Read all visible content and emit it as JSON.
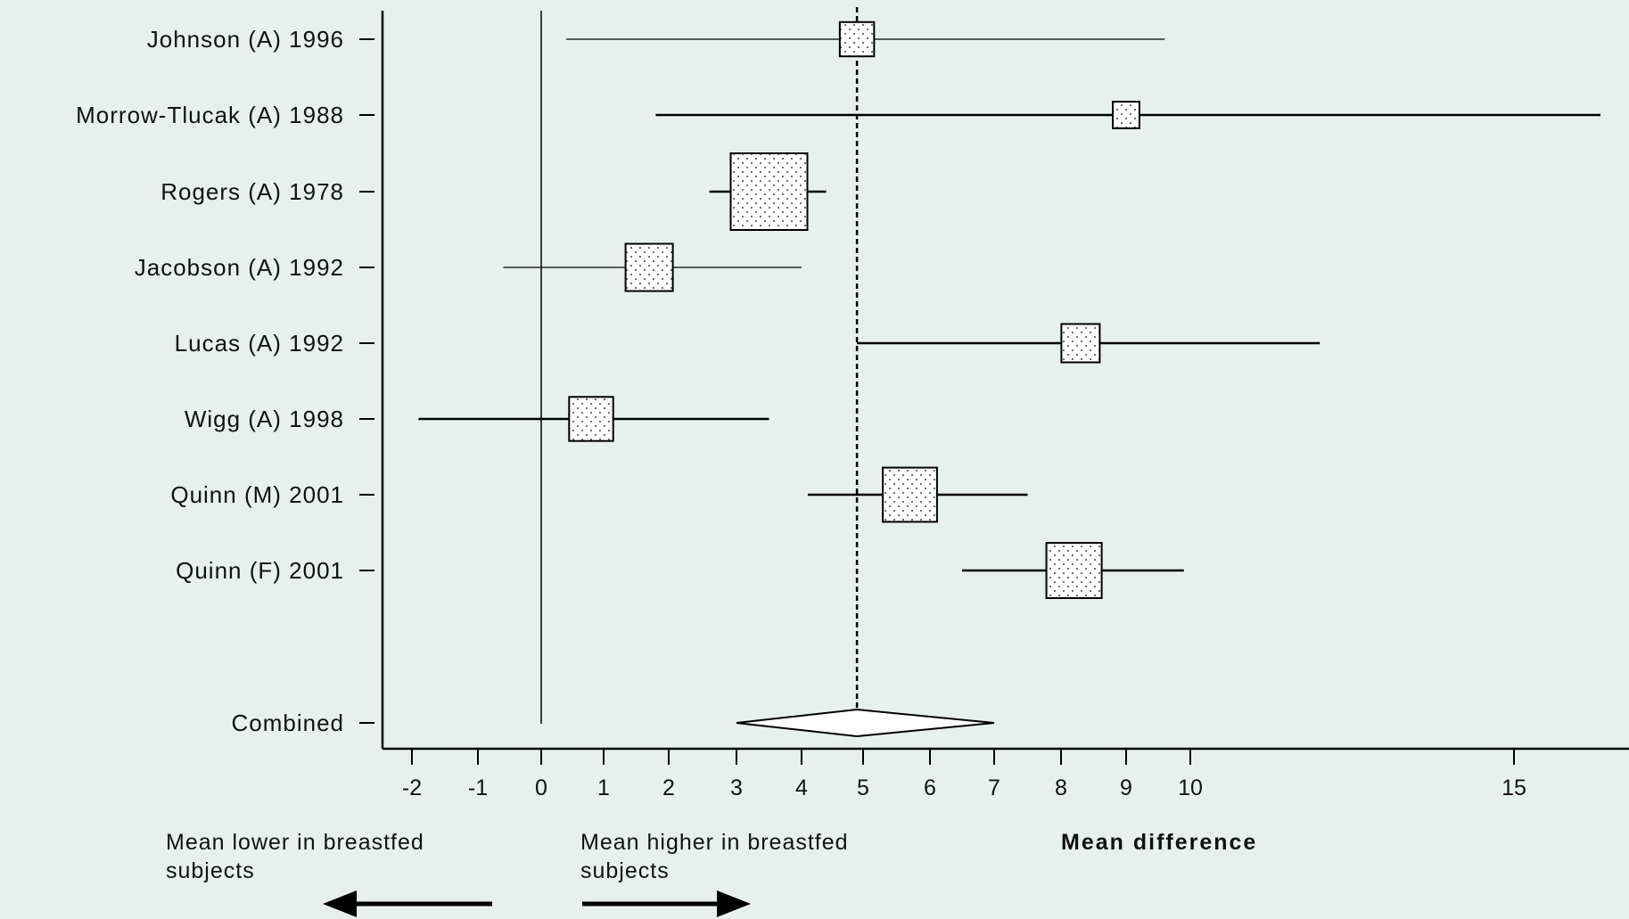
{
  "chart_data": {
    "type": "forest",
    "xlabel": "Mean difference",
    "x_ticks": [
      -2,
      -1,
      0,
      1,
      2,
      3,
      4,
      5,
      6,
      7,
      8,
      9,
      10,
      15
    ],
    "x_axis_scale": "nonlinear (tick spacing narrows from -2 to 10, widens to 15)",
    "null_line": 0,
    "pooled_reference_line": 4.9,
    "studies": [
      {
        "label": "Johnson (A) 1996",
        "estimate": 4.9,
        "ci_low": 0.4,
        "ci_high": 9.6,
        "weight_rel": 0.2
      },
      {
        "label": "Morrow-Tlucak (A) 1988",
        "estimate": 9.0,
        "ci_low": 1.8,
        "ci_high": 17.0,
        "weight_rel": 0.12
      },
      {
        "label": "Rogers (A) 1978",
        "estimate": 3.5,
        "ci_low": 2.6,
        "ci_high": 4.4,
        "weight_rel": 1.0
      },
      {
        "label": "Jacobson (A) 1992",
        "estimate": 1.7,
        "ci_low": -0.6,
        "ci_high": 4.0,
        "weight_rel": 0.38
      },
      {
        "label": "Lucas (A) 1992",
        "estimate": 8.3,
        "ci_low": 4.9,
        "ci_high": 12.0,
        "weight_rel": 0.25
      },
      {
        "label": "Wigg (A) 1998",
        "estimate": 0.8,
        "ci_low": -1.9,
        "ci_high": 3.5,
        "weight_rel": 0.33
      },
      {
        "label": "Quinn (M) 2001",
        "estimate": 5.7,
        "ci_low": 4.1,
        "ci_high": 7.5,
        "weight_rel": 0.5
      },
      {
        "label": "Quinn (F) 2001",
        "estimate": 8.2,
        "ci_low": 6.5,
        "ci_high": 9.9,
        "weight_rel": 0.52
      }
    ],
    "combined": {
      "label": "Combined",
      "estimate": 4.9,
      "ci_low": 3.0,
      "ci_high": 7.0
    },
    "annotations": {
      "left_line1": "Mean lower in breastfed",
      "left_line2": "subjects",
      "right_line1": "Mean higher in breastfed",
      "right_line2": "subjects"
    }
  }
}
